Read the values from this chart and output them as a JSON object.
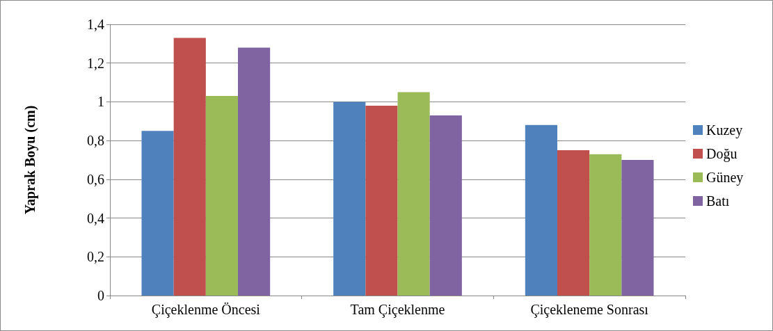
{
  "chart_data": {
    "type": "bar",
    "ylabel": "Yaprak Boyu (cm)",
    "categories": [
      "Çiçeklenme Öncesi",
      "Tam Çiçeklenme",
      "Çiçekleneme Sonrası"
    ],
    "series": [
      {
        "name": "Kuzey",
        "color": "#4f81bd",
        "values": [
          0.85,
          1.0,
          0.88
        ]
      },
      {
        "name": "Doğu",
        "color": "#c0504d",
        "values": [
          1.33,
          0.98,
          0.75
        ]
      },
      {
        "name": "Güney",
        "color": "#9bbb59",
        "values": [
          1.03,
          1.05,
          0.73
        ]
      },
      {
        "name": "Batı",
        "color": "#8064a2",
        "values": [
          1.28,
          0.93,
          0.7
        ]
      }
    ],
    "ylim": [
      0,
      1.4
    ],
    "yticks": [
      0,
      {
        "value": 0.2,
        "label": "0,2"
      },
      {
        "value": 0.4,
        "label": "0,4"
      },
      {
        "value": 0.6,
        "label": "0,6"
      },
      {
        "value": 0.8,
        "label": "0,8"
      },
      1,
      {
        "value": 1.2,
        "label": "1,2"
      },
      {
        "value": 1.4,
        "label": "1,4"
      }
    ],
    "grid": "y",
    "legend": "right"
  }
}
